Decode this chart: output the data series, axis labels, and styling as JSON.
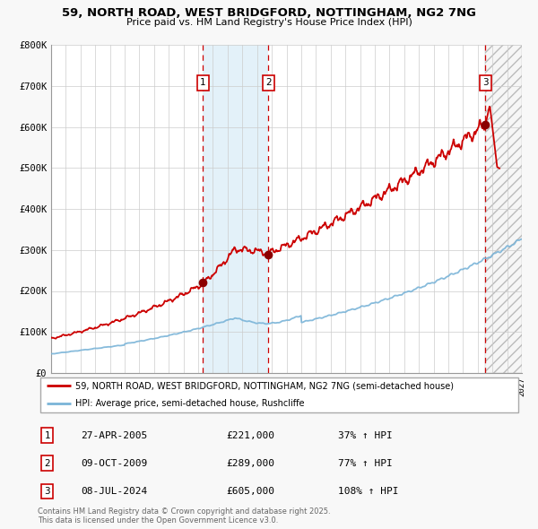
{
  "title_line1": "59, NORTH ROAD, WEST BRIDGFORD, NOTTINGHAM, NG2 7NG",
  "title_line2": "Price paid vs. HM Land Registry's House Price Index (HPI)",
  "hpi_color": "#7ab4d8",
  "price_color": "#cc0000",
  "bg_color": "#f8f8f8",
  "plot_bg_color": "#ffffff",
  "grid_color": "#cccccc",
  "ylim": [
    0,
    800000
  ],
  "yticks": [
    0,
    100000,
    200000,
    300000,
    400000,
    500000,
    600000,
    700000,
    800000
  ],
  "ytick_labels": [
    "£0",
    "£100K",
    "£200K",
    "£300K",
    "£400K",
    "£500K",
    "£600K",
    "£700K",
    "£800K"
  ],
  "sale1_date": 2005.32,
  "sale1_price": 221000,
  "sale2_date": 2009.77,
  "sale2_price": 289000,
  "sale3_date": 2024.52,
  "sale3_price": 605000,
  "span1_start": 2005.32,
  "span1_end": 2009.77,
  "span2_start": 2024.52,
  "span2_end": 2027.0,
  "legend_line1": "59, NORTH ROAD, WEST BRIDGFORD, NOTTINGHAM, NG2 7NG (semi-detached house)",
  "legend_line2": "HPI: Average price, semi-detached house, Rushcliffe",
  "table_rows": [
    {
      "num": "1",
      "date": "27-APR-2005",
      "price": "£221,000",
      "hpi": "37% ↑ HPI"
    },
    {
      "num": "2",
      "date": "09-OCT-2009",
      "price": "£289,000",
      "hpi": "77% ↑ HPI"
    },
    {
      "num": "3",
      "date": "08-JUL-2024",
      "price": "£605,000",
      "hpi": "108% ↑ HPI"
    }
  ],
  "footnote": "Contains HM Land Registry data © Crown copyright and database right 2025.\nThis data is licensed under the Open Government Licence v3.0.",
  "xmin": 1995.0,
  "xmax": 2027.0
}
